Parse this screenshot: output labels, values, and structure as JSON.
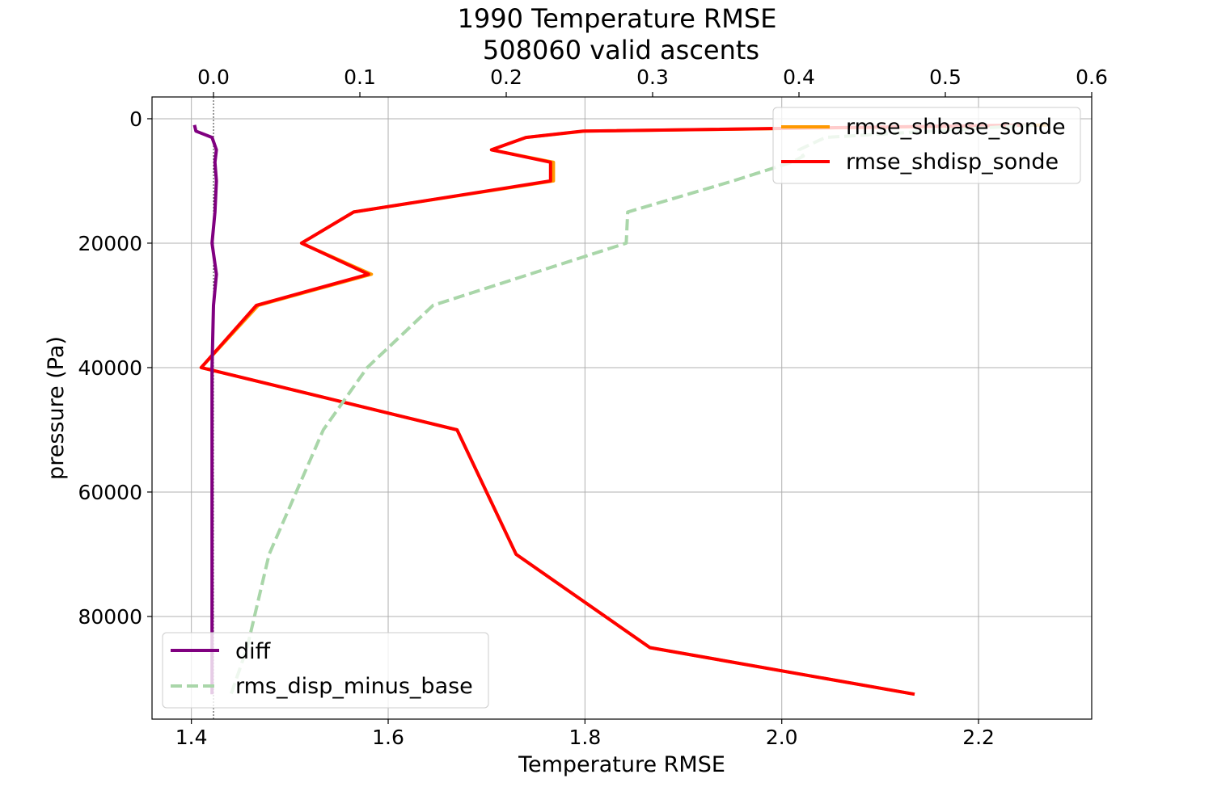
{
  "chart_data": {
    "type": "line",
    "title": "1990 Temperature RMSE",
    "subtitle": "508060 valid ascents",
    "xlabel": "Temperature RMSE",
    "ylabel": "pressure (Pa)",
    "grid": true,
    "y_inverted": true,
    "bottom_axis": {
      "xlim": [
        1.36,
        2.315
      ],
      "ticks": [
        1.4,
        1.6,
        1.8,
        2.0,
        2.2
      ],
      "tick_labels": [
        "1.4",
        "1.6",
        "1.8",
        "2.0",
        "2.2"
      ]
    },
    "top_axis": {
      "xlim": [
        -0.042,
        0.6
      ],
      "ticks": [
        0.0,
        0.1,
        0.2,
        0.3,
        0.4,
        0.5,
        0.6
      ],
      "tick_labels": [
        "0.0",
        "0.1",
        "0.2",
        "0.3",
        "0.4",
        "0.5",
        "0.6"
      ],
      "zero_reference_line": true
    },
    "y_axis": {
      "ylim": [
        96500,
        -3500
      ],
      "ticks": [
        0,
        20000,
        40000,
        60000,
        80000
      ],
      "tick_labels": [
        "0",
        "20000",
        "40000",
        "60000",
        "80000"
      ]
    },
    "legend_top_right": {
      "placement": "upper-right",
      "entries": [
        {
          "label": "rmse_shbase_sonde",
          "color": "#ff9900",
          "dash": "solid"
        },
        {
          "label": "rmse_shdisp_sonde",
          "color": "#ff0000",
          "dash": "solid"
        }
      ]
    },
    "legend_bottom_left": {
      "placement": "lower-left",
      "entries": [
        {
          "label": "diff",
          "color": "#800080",
          "dash": "solid"
        },
        {
          "label": "rms_disp_minus_base",
          "color": "#a9d6a9",
          "dash": "dashed"
        }
      ]
    },
    "series": [
      {
        "name": "rmse_shbase_sonde",
        "axis": "bottom",
        "color": "#ff9900",
        "dash": "solid",
        "y": [
          1000,
          2000,
          3000,
          5000,
          7000,
          10000,
          15000,
          20000,
          25000,
          30000,
          40000,
          50000,
          70000,
          85000,
          92500
        ],
        "x": [
          2.27,
          1.8,
          1.74,
          1.705,
          1.768,
          1.768,
          1.565,
          1.512,
          1.583,
          1.468,
          1.41,
          1.67,
          1.73,
          1.866,
          2.135
        ]
      },
      {
        "name": "rmse_shdisp_sonde",
        "axis": "bottom",
        "color": "#ff0000",
        "dash": "solid",
        "y": [
          1000,
          2000,
          3000,
          5000,
          7000,
          10000,
          15000,
          20000,
          25000,
          30000,
          40000,
          50000,
          70000,
          85000,
          92500
        ],
        "x": [
          2.25,
          1.798,
          1.74,
          1.705,
          1.765,
          1.765,
          1.565,
          1.512,
          1.58,
          1.466,
          1.41,
          1.67,
          1.73,
          1.866,
          2.135
        ]
      },
      {
        "name": "diff",
        "axis": "top",
        "color": "#800080",
        "dash": "solid",
        "y": [
          1000,
          2000,
          3000,
          5000,
          7000,
          10000,
          15000,
          20000,
          25000,
          30000,
          40000,
          50000,
          70000,
          85000,
          92500
        ],
        "x": [
          -0.013,
          -0.012,
          -0.001,
          0.002,
          0.001,
          0.002,
          0.001,
          -0.001,
          0.002,
          0.0,
          -0.001,
          -0.001,
          -0.001,
          -0.001,
          -0.001
        ]
      },
      {
        "name": "rms_disp_minus_base",
        "axis": "top",
        "color": "#a9d6a9",
        "dash": "dashed",
        "y": [
          1000,
          3000,
          5000,
          6000,
          7000,
          10000,
          15000,
          20000,
          30000,
          40000,
          50000,
          70000,
          85000,
          92500
        ],
        "x": [
          0.56,
          0.418,
          0.4,
          0.403,
          0.395,
          0.355,
          0.283,
          0.282,
          0.15,
          0.105,
          0.075,
          0.038,
          0.023,
          0.012
        ]
      }
    ]
  }
}
